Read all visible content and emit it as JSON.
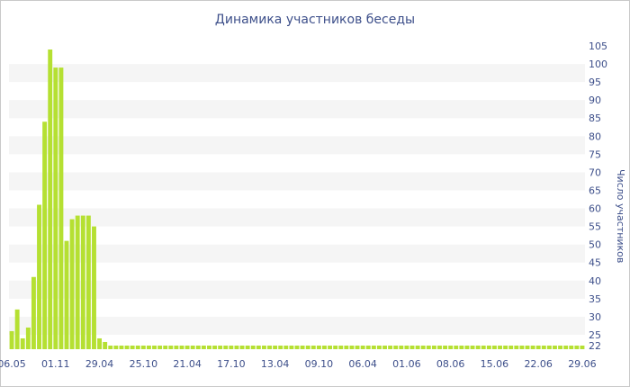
{
  "chart_data": {
    "type": "bar",
    "title": "Динамика участников беседы",
    "xlabel": "",
    "ylabel": "Число участников",
    "ylim": [
      21,
      105
    ],
    "yticks": [
      22,
      25,
      30,
      35,
      40,
      45,
      50,
      55,
      60,
      65,
      70,
      75,
      80,
      85,
      90,
      95,
      100,
      105
    ],
    "grid": "horizontal-bands",
    "legend": "none",
    "bar_color": "#b5e032",
    "x_tick_labels": [
      "06.05",
      "01.11",
      "29.04",
      "25.10",
      "21.04",
      "17.10",
      "13.04",
      "09.10",
      "06.04",
      "01.06",
      "08.06",
      "15.06",
      "22.06",
      "29.06"
    ],
    "x_tick_bar_index": [
      0,
      8,
      16,
      24,
      32,
      40,
      48,
      56,
      64,
      72,
      80,
      88,
      96,
      104
    ],
    "values": [
      26,
      32,
      24,
      27,
      41,
      61,
      84,
      104,
      99,
      99,
      51,
      57,
      58,
      58,
      58,
      55,
      24,
      23,
      22,
      22,
      22,
      22,
      22,
      22,
      22,
      22,
      22,
      22,
      22,
      22,
      22,
      22,
      22,
      22,
      22,
      22,
      22,
      22,
      22,
      22,
      22,
      22,
      22,
      22,
      22,
      22,
      22,
      22,
      22,
      22,
      22,
      22,
      22,
      22,
      22,
      22,
      22,
      22,
      22,
      22,
      22,
      22,
      22,
      22,
      22,
      22,
      22,
      22,
      22,
      22,
      22,
      22,
      22,
      22,
      22,
      22,
      22,
      22,
      22,
      22,
      22,
      22,
      22,
      22,
      22,
      22,
      22,
      22,
      22,
      22,
      22,
      22,
      22,
      22,
      22,
      22,
      22,
      22,
      22,
      22,
      22,
      22,
      22,
      22,
      22
    ]
  }
}
